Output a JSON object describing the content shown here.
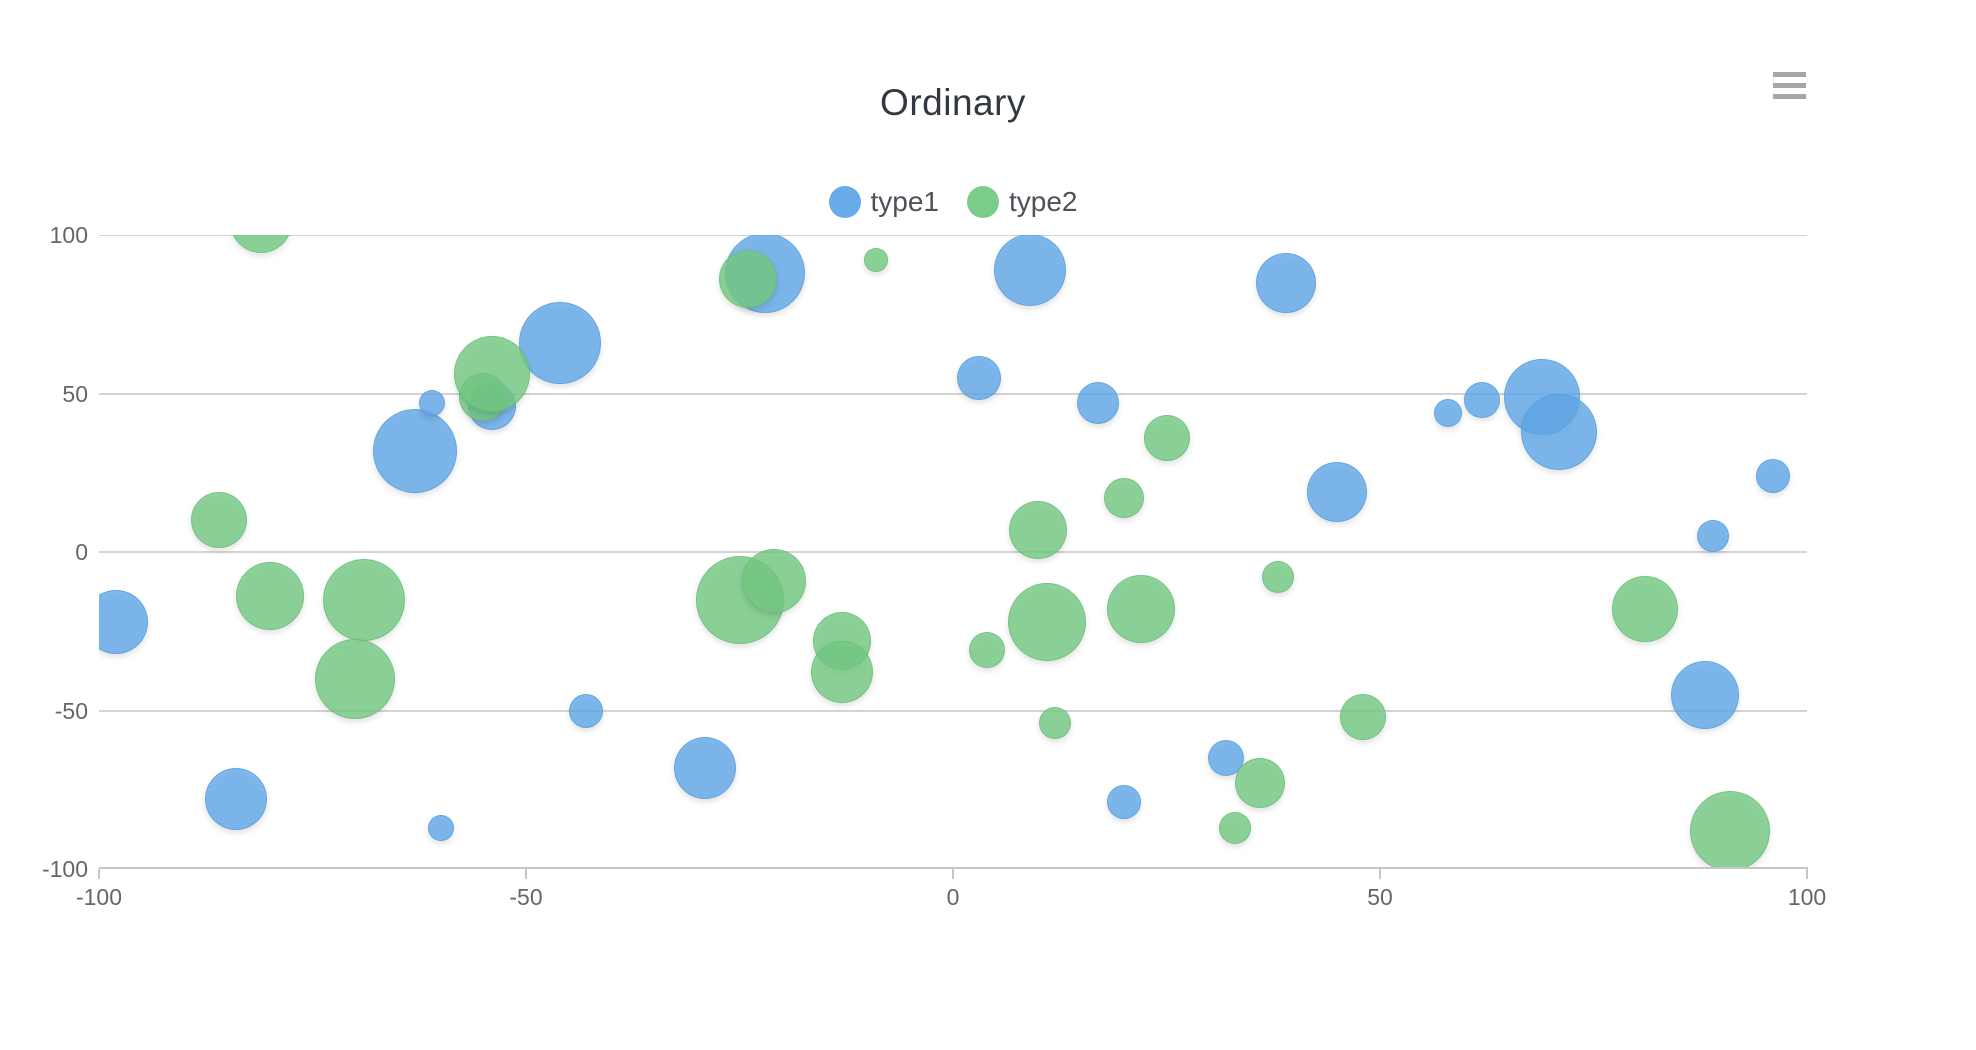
{
  "title": {
    "text": "Ordinary"
  },
  "toolbar": {
    "menu_icon": "hamburger-icon"
  },
  "legend": {
    "items": [
      {
        "label": "type1",
        "color": "#7cb5ec"
      },
      {
        "label": "type2",
        "color": "#90d49b"
      }
    ]
  },
  "axes": {
    "x": {
      "min": -100,
      "max": 100,
      "ticks": [
        -100,
        -50,
        0,
        50,
        100
      ]
    },
    "y": {
      "min": -100,
      "max": 100,
      "ticks": [
        100,
        50,
        0,
        -50,
        -100
      ]
    }
  },
  "chart_data": {
    "type": "bubble",
    "title": "Ordinary",
    "xlabel": "",
    "ylabel": "",
    "xlim": [
      -100,
      100
    ],
    "ylim": [
      -100,
      100
    ],
    "grid": "horizontal-only",
    "legend_position": "top-center",
    "point_format": "[x, y, marker_radius_px]",
    "series": [
      {
        "name": "type1",
        "color": "#7cb5ec",
        "fill": "rgba(95,168,232,0.80)",
        "points": [
          [
            -98,
            -22,
            32
          ],
          [
            -84,
            -78,
            31
          ],
          [
            -63,
            32,
            42
          ],
          [
            -61,
            47,
            13
          ],
          [
            -54,
            46,
            24
          ],
          [
            -46,
            66,
            41
          ],
          [
            -60,
            -87,
            13
          ],
          [
            -43,
            -50,
            17
          ],
          [
            -29,
            -68,
            31
          ],
          [
            -22,
            88,
            40
          ],
          [
            9,
            89,
            36
          ],
          [
            3,
            55,
            22
          ],
          [
            17,
            47,
            21
          ],
          [
            39,
            85,
            30
          ],
          [
            45,
            19,
            30
          ],
          [
            20,
            -79,
            17
          ],
          [
            32,
            -65,
            18
          ],
          [
            58,
            44,
            14
          ],
          [
            62,
            48,
            18
          ],
          [
            69,
            49,
            38
          ],
          [
            71,
            38,
            38
          ],
          [
            96,
            24,
            17
          ],
          [
            89,
            5,
            16
          ],
          [
            88,
            -45,
            34
          ]
        ]
      },
      {
        "name": "type2",
        "color": "#90d49b",
        "fill": "rgba(115,201,130,0.80)",
        "points": [
          [
            -81,
            104,
            31
          ],
          [
            -86,
            10,
            28
          ],
          [
            -80,
            -14,
            34
          ],
          [
            -69,
            -15,
            41
          ],
          [
            -70,
            -40,
            40
          ],
          [
            -55,
            49,
            24
          ],
          [
            -54,
            56,
            38
          ],
          [
            -24,
            86,
            29
          ],
          [
            -9,
            92,
            12
          ],
          [
            -25,
            -15,
            44
          ],
          [
            -21,
            -9,
            32
          ],
          [
            -13,
            -28,
            29
          ],
          [
            -13,
            -38,
            31
          ],
          [
            4,
            -31,
            18
          ],
          [
            11,
            -22,
            39
          ],
          [
            22,
            -18,
            34
          ],
          [
            10,
            7,
            29
          ],
          [
            12,
            -54,
            16
          ],
          [
            20,
            17,
            20
          ],
          [
            25,
            36,
            23
          ],
          [
            38,
            -8,
            16
          ],
          [
            48,
            -52,
            23
          ],
          [
            36,
            -73,
            25
          ],
          [
            33,
            -87,
            16
          ],
          [
            81,
            -18,
            33
          ],
          [
            91,
            -88,
            40
          ]
        ]
      }
    ]
  }
}
